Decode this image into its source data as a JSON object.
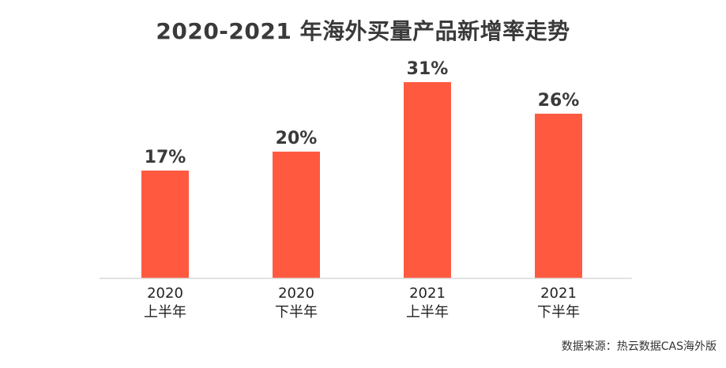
{
  "chart_data": {
    "type": "bar",
    "title": "2020-2021 年海外买量产品新增率走势",
    "categories": [
      [
        "2020",
        "上半年"
      ],
      [
        "2020",
        "下半年"
      ],
      [
        "2021",
        "上半年"
      ],
      [
        "2021",
        "下半年"
      ]
    ],
    "values": [
      17,
      20,
      31,
      26
    ],
    "value_labels": [
      "17%",
      "20%",
      "31%",
      "26%"
    ],
    "ylim": [
      0,
      35
    ],
    "grid": false,
    "bar_color": "#FF5A40",
    "axis_color": "#D9D9D9"
  },
  "source": "数据来源：热云数据CAS海外版"
}
